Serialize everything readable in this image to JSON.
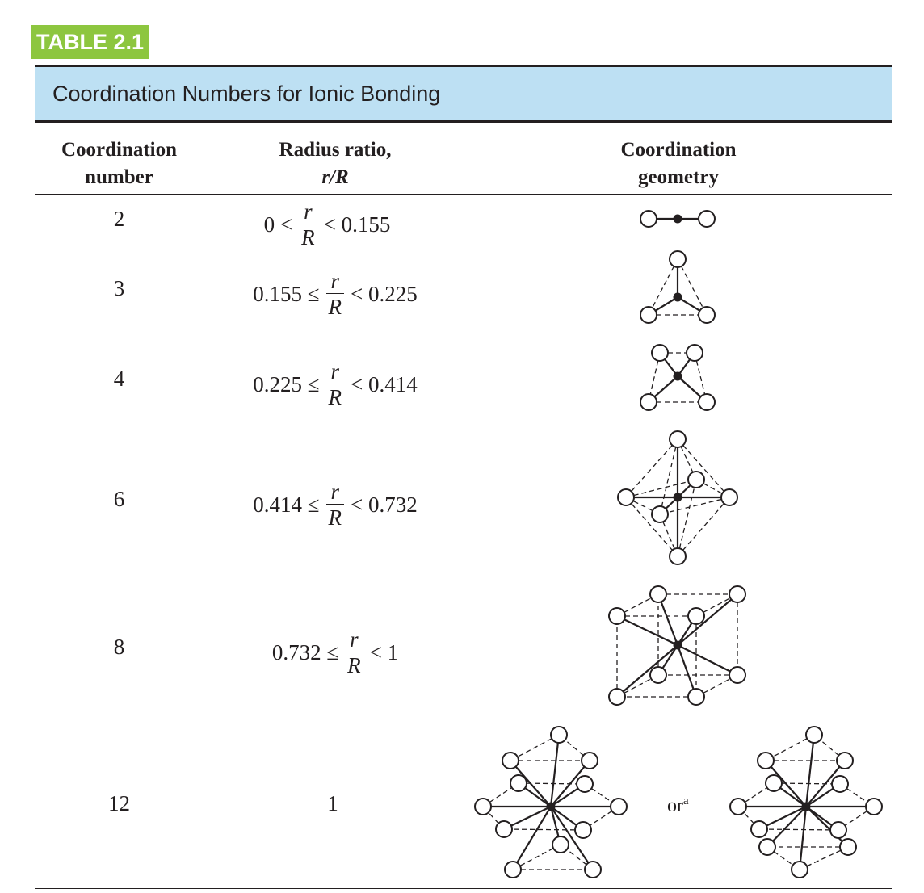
{
  "table_label": "TABLE 2.1",
  "title": "Coordination Numbers for Ionic Bonding",
  "headers": {
    "cn_line1": "Coordination",
    "cn_line2": "number",
    "ratio_line1": "Radius ratio,",
    "ratio_line2": "r/R",
    "geo_line1": "Coordination",
    "geo_line2": "geometry"
  },
  "fraction": {
    "numerator": "r",
    "denominator": "R"
  },
  "rows": [
    {
      "cn": "2",
      "left": "0 <",
      "right": "< 0.155"
    },
    {
      "cn": "3",
      "left": "0.155 ≤",
      "right": "< 0.225"
    },
    {
      "cn": "4",
      "left": "0.225 ≤",
      "right": "< 0.414"
    },
    {
      "cn": "6",
      "left": "0.414 ≤",
      "right": "< 0.732"
    },
    {
      "cn": "8",
      "left": "0.732 ≤",
      "right": "< 1"
    },
    {
      "cn": "12",
      "ratio": "1"
    }
  ],
  "or_text": "or",
  "or_sup": "a",
  "colors": {
    "label_bg": "#8dc63f",
    "title_bg": "#bde0f3",
    "ink": "#231f20"
  }
}
